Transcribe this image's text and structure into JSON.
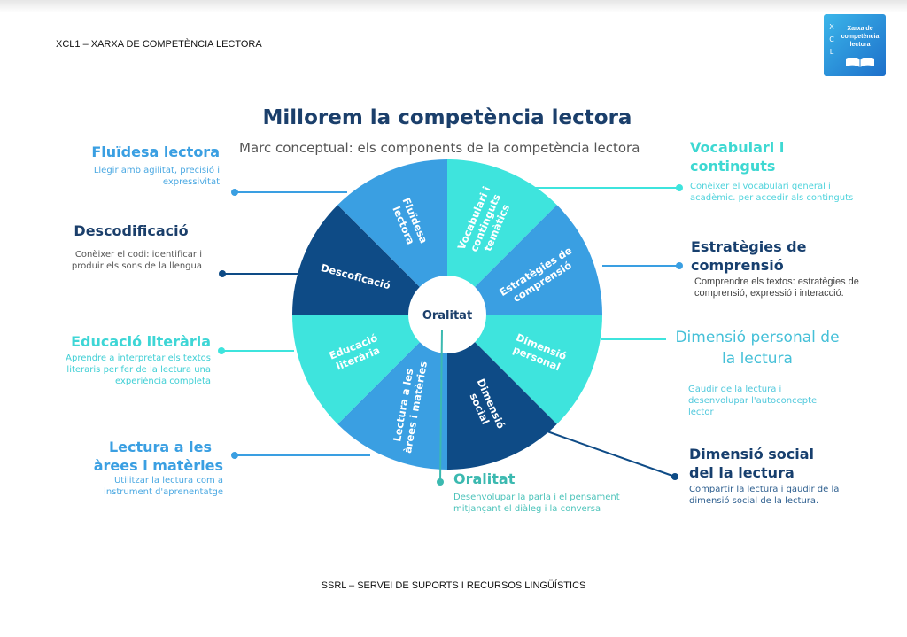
{
  "header": {
    "text": "XCL1 – XARXA DE COMPETÈNCIA LECTORA"
  },
  "footer": {
    "text": "SSRL – SERVEI DE SUPORTS I RECURSOS LINGÜÍSTICS"
  },
  "logo": {
    "letters": [
      "X",
      "C",
      "L"
    ],
    "text": "Xarxa de competència lectora",
    "icon": "open-book-icon"
  },
  "diagram": {
    "title": "Millorem la competència lectora",
    "subtitle": "Marc conceptual: els components de la competència lectora",
    "center_label": "Oralitat",
    "colors": {
      "blue": "#3a9fe2",
      "cyan": "#3ee4dd",
      "navy": "#0e4b86"
    },
    "segments": [
      {
        "lines": [
          "Vocabulari i",
          "continguts",
          "temàtics"
        ],
        "color": "#3ee4dd"
      },
      {
        "lines": [
          "Estratègies de",
          "comprensió"
        ],
        "color": "#3a9fe2"
      },
      {
        "lines": [
          "Dimensió",
          "personal"
        ],
        "color": "#3ee4dd"
      },
      {
        "lines": [
          "Dimensió",
          "social"
        ],
        "color": "#0e4b86"
      },
      {
        "lines": [
          "Lectura a les",
          "àrees i matèries"
        ],
        "color": "#3a9fe2"
      },
      {
        "lines": [
          "Educació",
          "literària"
        ],
        "color": "#3ee4dd"
      },
      {
        "lines": [
          "Descoficació"
        ],
        "color": "#0e4b86"
      },
      {
        "lines": [
          "Fluïdesa",
          "lectora"
        ],
        "color": "#3a9fe2"
      }
    ],
    "annotations": {
      "fluidesa": {
        "title": "Fluïdesa lectora",
        "desc": "Llegir amb agilitat, precisió i expressivitat"
      },
      "descodificacio": {
        "title": "Descodificació",
        "desc": "Conèixer el codi: identificar i produir els sons de la llengua"
      },
      "educacio": {
        "title": "Educació literària",
        "desc": "Aprendre a interpretar els textos literaris per fer de la lectura una experiència completa"
      },
      "lectura": {
        "title1": "Lectura a les",
        "title2": "àrees i matèries",
        "desc1": "Utilitzar la lectura com a",
        "desc2": "instrument d'aprenentatge"
      },
      "vocabulari": {
        "title": "Vocabulari i continguts",
        "desc": "Conèixer el vocabulari general i acadèmic. per accedir als continguts"
      },
      "estrategies": {
        "title": "Estratègies de comprensió",
        "desc": "Comprendre els textos: estratègies de comprensió, expressió i interacció."
      },
      "personal": {
        "title": "Dimensió personal de la lectura",
        "desc": "Gaudir de la lectura i desenvolupar l'autoconcepte lector"
      },
      "social": {
        "title": "Dimensió social del la lectura",
        "desc": "Compartir la lectura i gaudir de la dimensió social de la lectura."
      },
      "oralitat": {
        "title": "Oralitat",
        "desc": "Desenvolupar la parla i el pensament mitjançant el diàleg i la conversa"
      }
    }
  }
}
